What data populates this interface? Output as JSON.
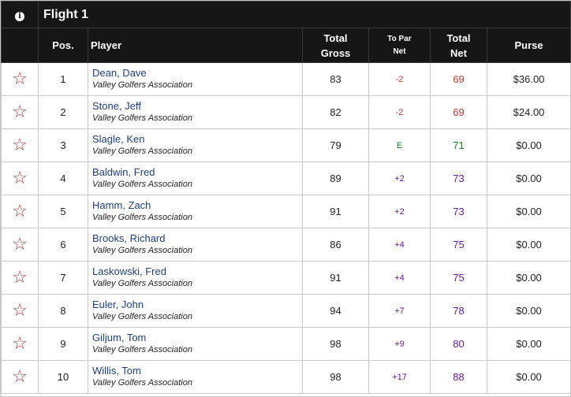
{
  "flight": {
    "info_icon": "info-icon",
    "title": "Flight 1"
  },
  "headers": {
    "pos": "Pos.",
    "player": "Player",
    "total_gross_line1": "Total",
    "total_gross_line2": "Gross",
    "to_par_line1": "To Par",
    "to_par_line2": "Net",
    "total_net_line1": "Total",
    "total_net_line2": "Net",
    "purse": "Purse"
  },
  "colors": {
    "header_bg": "#161616",
    "star": "#b33a3a",
    "under_par": "#c0392b",
    "even_par": "#1e7d1e",
    "over_par": "#6a1b9a",
    "player_link": "#1f3f7a"
  },
  "rows": [
    {
      "favorite_icon": "star-outline-icon",
      "pos": "1",
      "name": "Dean, Dave",
      "association": "Valley Golfers Association",
      "total_gross": "83",
      "to_par_net": "-2",
      "total_net": "69",
      "purse": "$36.00",
      "status": "under"
    },
    {
      "favorite_icon": "star-outline-icon",
      "pos": "2",
      "name": "Stone, Jeff",
      "association": "Valley Golfers Association",
      "total_gross": "82",
      "to_par_net": "-2",
      "total_net": "69",
      "purse": "$24.00",
      "status": "under"
    },
    {
      "favorite_icon": "star-outline-icon",
      "pos": "3",
      "name": "Slagle, Ken",
      "association": "Valley Golfers Association",
      "total_gross": "79",
      "to_par_net": "E",
      "total_net": "71",
      "purse": "$0.00",
      "status": "even"
    },
    {
      "favorite_icon": "star-outline-icon",
      "pos": "4",
      "name": "Baldwin, Fred",
      "association": "Valley Golfers Association",
      "total_gross": "89",
      "to_par_net": "+2",
      "total_net": "73",
      "purse": "$0.00",
      "status": "over"
    },
    {
      "favorite_icon": "star-outline-icon",
      "pos": "5",
      "name": "Hamm, Zach",
      "association": "Valley Golfers Association",
      "total_gross": "91",
      "to_par_net": "+2",
      "total_net": "73",
      "purse": "$0.00",
      "status": "over"
    },
    {
      "favorite_icon": "star-outline-icon",
      "pos": "6",
      "name": "Brooks, Richard",
      "association": "Valley Golfers Association",
      "total_gross": "86",
      "to_par_net": "+4",
      "total_net": "75",
      "purse": "$0.00",
      "status": "over"
    },
    {
      "favorite_icon": "star-outline-icon",
      "pos": "7",
      "name": "Laskowski, Fred",
      "association": "Valley Golfers Association",
      "total_gross": "91",
      "to_par_net": "+4",
      "total_net": "75",
      "purse": "$0.00",
      "status": "over"
    },
    {
      "favorite_icon": "star-outline-icon",
      "pos": "8",
      "name": "Euler, John",
      "association": "Valley Golfers Association",
      "total_gross": "94",
      "to_par_net": "+7",
      "total_net": "78",
      "purse": "$0.00",
      "status": "over"
    },
    {
      "favorite_icon": "star-outline-icon",
      "pos": "9",
      "name": "Giljum, Tom",
      "association": "Valley Golfers Association",
      "total_gross": "98",
      "to_par_net": "+9",
      "total_net": "80",
      "purse": "$0.00",
      "status": "over"
    },
    {
      "favorite_icon": "star-outline-icon",
      "pos": "10",
      "name": "Willis, Tom",
      "association": "Valley Golfers Association",
      "total_gross": "98",
      "to_par_net": "+17",
      "total_net": "88",
      "purse": "$0.00",
      "status": "over"
    }
  ]
}
